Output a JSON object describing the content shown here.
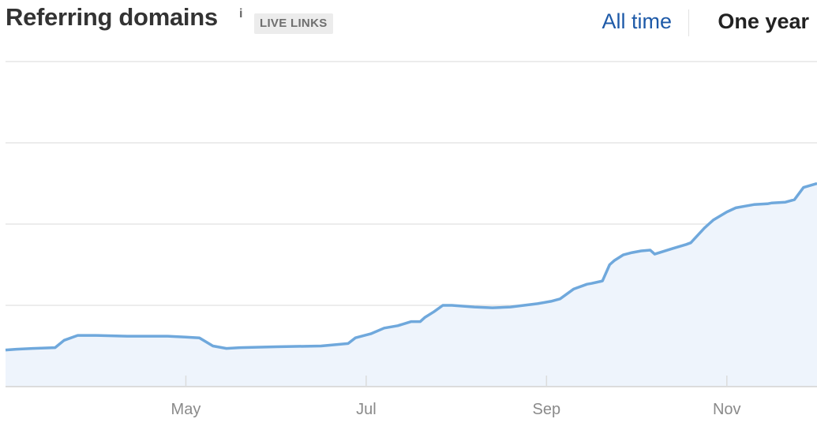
{
  "header": {
    "title": "Referring domains",
    "info_icon": "i",
    "badge": "LIVE LINKS",
    "tabs": [
      {
        "label": "All time",
        "active": false
      },
      {
        "label": "One year",
        "active": true
      }
    ]
  },
  "colors": {
    "line": "#6fa8dc",
    "fill": "#eef4fc",
    "grid": "#e6e6e6",
    "axis": "#dcdcdc",
    "tab_link": "#1e5aa8",
    "tab_active": "#222222"
  },
  "chart_data": {
    "type": "area",
    "title": "Referring domains",
    "xlabel": "",
    "ylabel": "",
    "x_tick_labels": [
      "May",
      "Jul",
      "Sep",
      "Nov"
    ],
    "x_tick_positions": [
      2.0,
      4.0,
      6.0,
      8.0
    ],
    "x_range": [
      0,
      9.0
    ],
    "y_range": [
      0,
      4
    ],
    "grid_lines": [
      1,
      2,
      3,
      4
    ],
    "y_tick_labels_visible": false,
    "series": [
      {
        "x": [
          0.0,
          0.12,
          0.3,
          0.55,
          0.65,
          0.8,
          1.0,
          1.35,
          1.8,
          2.0,
          2.15,
          2.3,
          2.45,
          2.6,
          3.0,
          3.5,
          3.8,
          3.88,
          3.95,
          4.05,
          4.2,
          4.35,
          4.5,
          4.6,
          4.65,
          4.75,
          4.85,
          4.95,
          5.2,
          5.4,
          5.6,
          5.9,
          6.05,
          6.15,
          6.3,
          6.45,
          6.5,
          6.62,
          6.7,
          6.75,
          6.85,
          6.95,
          7.05,
          7.15,
          7.2,
          7.4,
          7.55,
          7.6,
          7.75,
          7.8,
          7.85,
          8.0,
          8.1,
          8.2,
          8.3,
          8.45,
          8.5,
          8.65,
          8.75,
          8.85,
          9.0
        ],
        "y": [
          0.45,
          0.46,
          0.47,
          0.48,
          0.57,
          0.63,
          0.63,
          0.62,
          0.62,
          0.61,
          0.6,
          0.5,
          0.47,
          0.48,
          0.49,
          0.5,
          0.53,
          0.6,
          0.62,
          0.65,
          0.72,
          0.75,
          0.8,
          0.8,
          0.85,
          0.92,
          1.0,
          1.0,
          0.98,
          0.97,
          0.98,
          1.02,
          1.05,
          1.08,
          1.2,
          1.26,
          1.27,
          1.3,
          1.5,
          1.55,
          1.62,
          1.65,
          1.67,
          1.68,
          1.63,
          1.7,
          1.75,
          1.77,
          1.95,
          2.0,
          2.05,
          2.15,
          2.2,
          2.22,
          2.24,
          2.25,
          2.26,
          2.27,
          2.3,
          2.45,
          2.5
        ]
      }
    ]
  }
}
